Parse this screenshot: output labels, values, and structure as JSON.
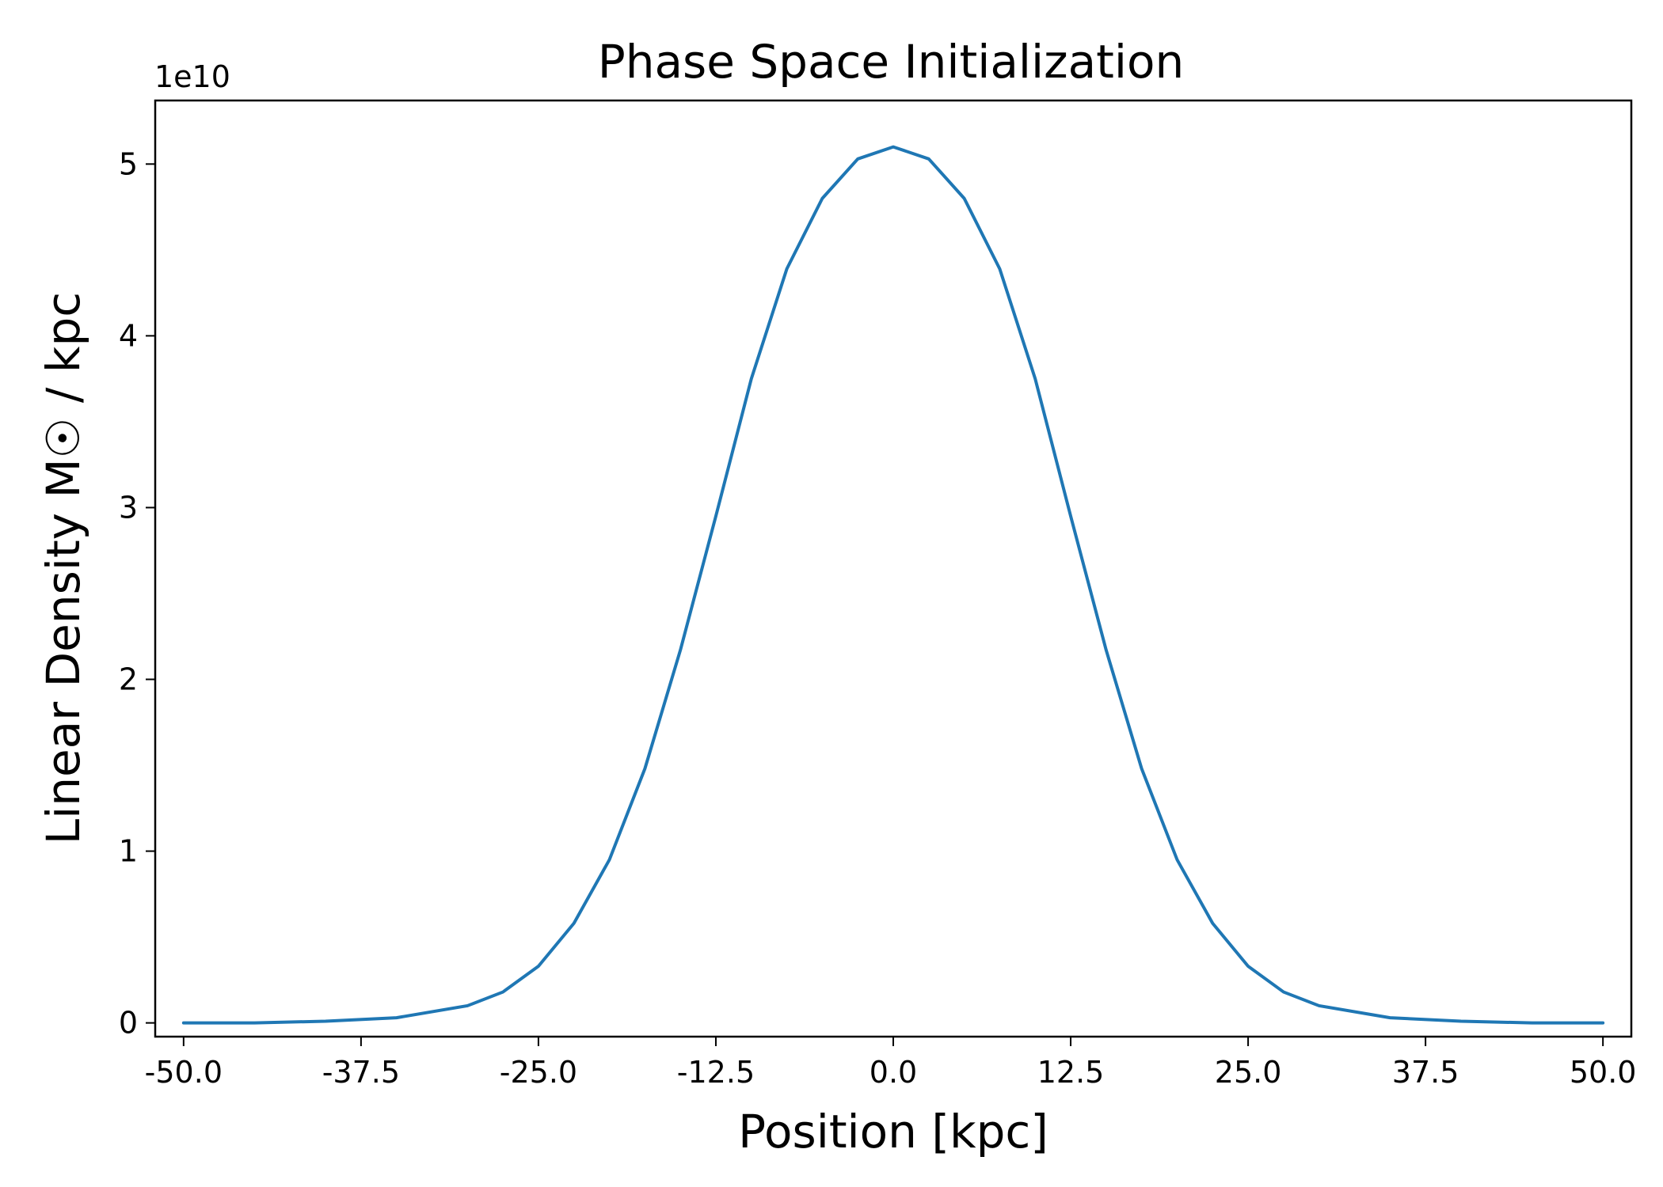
{
  "chart_data": {
    "type": "line",
    "title": "Phase Space Initialization",
    "xlabel": "Position [kpc]",
    "ylabel": "Linear Density M☉ / kpc",
    "y_offset_label": "1e10",
    "xlim": [
      -52.0,
      52.0
    ],
    "ylim": [
      -0.08,
      5.37
    ],
    "x_ticks": [
      -50.0,
      -37.5,
      -25.0,
      -12.5,
      0.0,
      12.5,
      25.0,
      37.5,
      50.0
    ],
    "x_tick_labels": [
      "-50.0",
      "-37.5",
      "-25.0",
      "-12.5",
      "0.0",
      "12.5",
      "25.0",
      "37.5",
      "50.0"
    ],
    "y_ticks": [
      0,
      1,
      2,
      3,
      4,
      5
    ],
    "y_tick_labels": [
      "0",
      "1",
      "2",
      "3",
      "4",
      "5"
    ],
    "grid": false,
    "series": [
      {
        "color": "#1f77b4",
        "x": [
          -50,
          -45,
          -40,
          -35,
          -30,
          -27.5,
          -25,
          -22.5,
          -20,
          -17.5,
          -15,
          -12.5,
          -10,
          -7.5,
          -5,
          -2.5,
          0,
          2.5,
          5,
          7.5,
          10,
          12.5,
          15,
          17.5,
          20,
          22.5,
          25,
          27.5,
          30,
          35,
          40,
          45,
          50
        ],
        "y": [
          0.0,
          0.0,
          0.01,
          0.03,
          0.1,
          0.18,
          0.33,
          0.58,
          0.95,
          1.48,
          2.17,
          2.95,
          3.75,
          4.39,
          4.8,
          5.03,
          5.1,
          5.03,
          4.8,
          4.39,
          3.75,
          2.95,
          2.17,
          1.48,
          0.95,
          0.58,
          0.33,
          0.18,
          0.1,
          0.03,
          0.01,
          0.0,
          0.0
        ]
      }
    ]
  }
}
